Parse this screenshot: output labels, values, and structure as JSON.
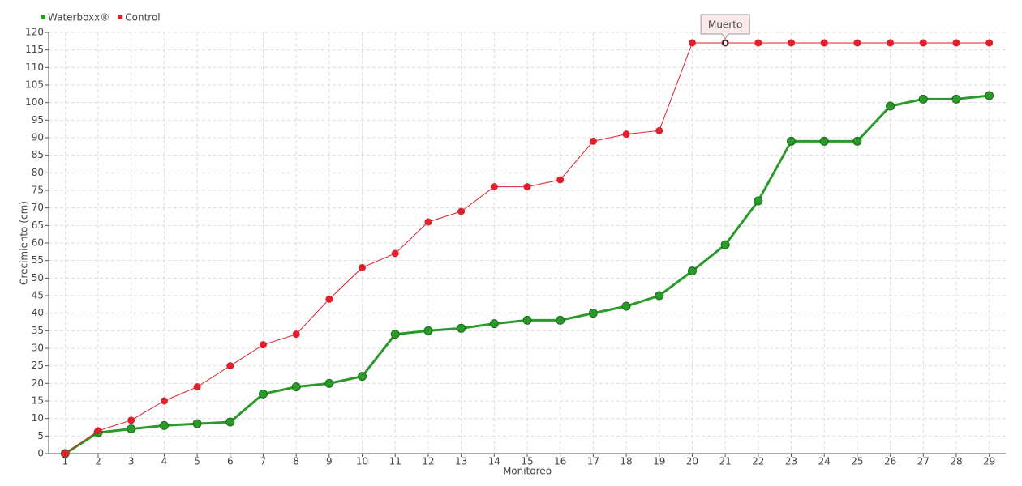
{
  "chart_data": {
    "type": "line",
    "x_label": "Monitoreo",
    "y_label": "Crecimiento (cm)",
    "x": [
      1,
      2,
      3,
      4,
      5,
      6,
      7,
      8,
      9,
      10,
      11,
      12,
      13,
      14,
      15,
      16,
      17,
      18,
      19,
      20,
      21,
      22,
      23,
      24,
      25,
      26,
      27,
      28,
      29
    ],
    "xlim": [
      0.5,
      29.5
    ],
    "xticks": [
      1,
      2,
      3,
      4,
      5,
      6,
      7,
      8,
      9,
      10,
      11,
      12,
      13,
      14,
      15,
      16,
      17,
      18,
      19,
      20,
      21,
      22,
      23,
      24,
      25,
      26,
      27,
      28,
      29
    ],
    "ylim": [
      0,
      120
    ],
    "yticks": [
      0,
      5,
      10,
      15,
      20,
      25,
      30,
      35,
      40,
      45,
      50,
      55,
      60,
      65,
      70,
      75,
      80,
      85,
      90,
      95,
      100,
      105,
      110,
      115,
      120
    ],
    "grid": true,
    "legend": "top-left",
    "series": [
      {
        "name": "Waterboxx®",
        "color": "#2a9a2a",
        "values": [
          0,
          6,
          7,
          8,
          8.5,
          9,
          17,
          19,
          20,
          22,
          34,
          35,
          35.7,
          37,
          38,
          38,
          40,
          42,
          45,
          52,
          59.5,
          72,
          89,
          89,
          89,
          99,
          101,
          101,
          102
        ]
      },
      {
        "name": "Control",
        "color": "#e0202c",
        "values": [
          0,
          6.5,
          9.5,
          15,
          19,
          25,
          31,
          34,
          44,
          53,
          57,
          66,
          69,
          76,
          76,
          78,
          89,
          91,
          92,
          117,
          117,
          117,
          117,
          117,
          117,
          117,
          117,
          117,
          117
        ]
      }
    ],
    "annotations": [
      {
        "text": "Muerto",
        "x": 21,
        "y": 117
      }
    ]
  }
}
